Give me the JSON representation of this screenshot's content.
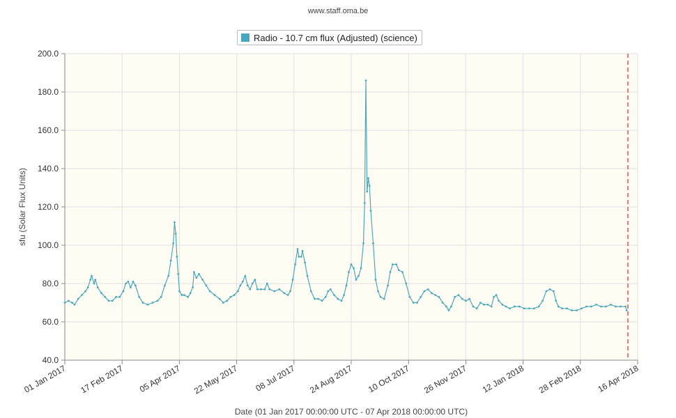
{
  "page": {
    "credit": "www.staff.oma.be"
  },
  "chart_data": {
    "type": "line",
    "title": "",
    "xlabel": "Date (01 Jan 2017 00:00:00 UTC - 07 Apr 2018 00:00:00 UTC)",
    "ylabel": "sfu (Solar Flux Units)",
    "ylim": [
      40,
      200
    ],
    "xlim": [
      "2017-01-01",
      "2018-04-16"
    ],
    "grid": true,
    "legend_position": "top-center",
    "background_color": "#fefcf3",
    "series_color": "#4aa8bd",
    "marker_line_color": "#d9534f",
    "marker_line_date": "2018-04-08",
    "y_ticks": [
      "40.0",
      "60.0",
      "80.0",
      "100.0",
      "120.0",
      "140.0",
      "160.0",
      "180.0",
      "200.0"
    ],
    "x_ticks": [
      {
        "date": "2017-01-01",
        "label": "01 Jan 2017"
      },
      {
        "date": "2017-02-17",
        "label": "17 Feb 2017"
      },
      {
        "date": "2017-04-05",
        "label": "05 Apr 2017"
      },
      {
        "date": "2017-05-22",
        "label": "22 May 2017"
      },
      {
        "date": "2017-07-08",
        "label": "08 Jul 2017"
      },
      {
        "date": "2017-08-24",
        "label": "24 Aug 2017"
      },
      {
        "date": "2017-10-10",
        "label": "10 Oct 2017"
      },
      {
        "date": "2017-11-26",
        "label": "26 Nov 2017"
      },
      {
        "date": "2018-01-12",
        "label": "12 Jan 2018"
      },
      {
        "date": "2018-02-28",
        "label": "28 Feb 2018"
      },
      {
        "date": "2018-04-16",
        "label": "16 Apr 2018"
      }
    ],
    "series": [
      {
        "name": "Radio - 10.7 cm flux (Adjusted) (science)",
        "points": [
          [
            "2017-01-01",
            70
          ],
          [
            "2017-01-04",
            71
          ],
          [
            "2017-01-07",
            70
          ],
          [
            "2017-01-09",
            69
          ],
          [
            "2017-01-12",
            72
          ],
          [
            "2017-01-15",
            74
          ],
          [
            "2017-01-18",
            76
          ],
          [
            "2017-01-20",
            78
          ],
          [
            "2017-01-22",
            82
          ],
          [
            "2017-01-23",
            84
          ],
          [
            "2017-01-25",
            80
          ],
          [
            "2017-01-26",
            82
          ],
          [
            "2017-01-28",
            78
          ],
          [
            "2017-01-31",
            75
          ],
          [
            "2017-02-03",
            73
          ],
          [
            "2017-02-06",
            71
          ],
          [
            "2017-02-09",
            71
          ],
          [
            "2017-02-12",
            73
          ],
          [
            "2017-02-15",
            73
          ],
          [
            "2017-02-18",
            76
          ],
          [
            "2017-02-20",
            80
          ],
          [
            "2017-02-22",
            81
          ],
          [
            "2017-02-24",
            78
          ],
          [
            "2017-02-26",
            81
          ],
          [
            "2017-02-28",
            79
          ],
          [
            "2017-03-03",
            73
          ],
          [
            "2017-03-06",
            70
          ],
          [
            "2017-03-10",
            69
          ],
          [
            "2017-03-14",
            70
          ],
          [
            "2017-03-18",
            71
          ],
          [
            "2017-03-21",
            73
          ],
          [
            "2017-03-24",
            79
          ],
          [
            "2017-03-27",
            84
          ],
          [
            "2017-03-29",
            92
          ],
          [
            "2017-03-31",
            101
          ],
          [
            "2017-04-01",
            112
          ],
          [
            "2017-04-02",
            106
          ],
          [
            "2017-04-03",
            94
          ],
          [
            "2017-04-04",
            85
          ],
          [
            "2017-04-05",
            76
          ],
          [
            "2017-04-07",
            74
          ],
          [
            "2017-04-09",
            74
          ],
          [
            "2017-04-12",
            73
          ],
          [
            "2017-04-14",
            75
          ],
          [
            "2017-04-16",
            78
          ],
          [
            "2017-04-17",
            86
          ],
          [
            "2017-04-19",
            83
          ],
          [
            "2017-04-21",
            85
          ],
          [
            "2017-04-24",
            82
          ],
          [
            "2017-04-27",
            79
          ],
          [
            "2017-04-30",
            76
          ],
          [
            "2017-05-04",
            74
          ],
          [
            "2017-05-08",
            72
          ],
          [
            "2017-05-11",
            70
          ],
          [
            "2017-05-14",
            71
          ],
          [
            "2017-05-17",
            73
          ],
          [
            "2017-05-20",
            74
          ],
          [
            "2017-05-23",
            76
          ],
          [
            "2017-05-25",
            79
          ],
          [
            "2017-05-27",
            81
          ],
          [
            "2017-05-29",
            84
          ],
          [
            "2017-05-31",
            79
          ],
          [
            "2017-06-02",
            77
          ],
          [
            "2017-06-04",
            80
          ],
          [
            "2017-06-06",
            82
          ],
          [
            "2017-06-08",
            77
          ],
          [
            "2017-06-11",
            77
          ],
          [
            "2017-06-14",
            77
          ],
          [
            "2017-06-16",
            80
          ],
          [
            "2017-06-18",
            77
          ],
          [
            "2017-06-22",
            76
          ],
          [
            "2017-06-26",
            77
          ],
          [
            "2017-06-30",
            75
          ],
          [
            "2017-07-03",
            74
          ],
          [
            "2017-07-05",
            76
          ],
          [
            "2017-07-07",
            82
          ],
          [
            "2017-07-09",
            90
          ],
          [
            "2017-07-11",
            98
          ],
          [
            "2017-07-12",
            94
          ],
          [
            "2017-07-14",
            94
          ],
          [
            "2017-07-15",
            97
          ],
          [
            "2017-07-17",
            91
          ],
          [
            "2017-07-19",
            84
          ],
          [
            "2017-07-22",
            76
          ],
          [
            "2017-07-25",
            72
          ],
          [
            "2017-07-28",
            72
          ],
          [
            "2017-07-31",
            71
          ],
          [
            "2017-08-03",
            73
          ],
          [
            "2017-08-05",
            76
          ],
          [
            "2017-08-07",
            77
          ],
          [
            "2017-08-10",
            74
          ],
          [
            "2017-08-13",
            72
          ],
          [
            "2017-08-16",
            71
          ],
          [
            "2017-08-18",
            74
          ],
          [
            "2017-08-20",
            79
          ],
          [
            "2017-08-22",
            86
          ],
          [
            "2017-08-24",
            90
          ],
          [
            "2017-08-26",
            88
          ],
          [
            "2017-08-28",
            82
          ],
          [
            "2017-08-30",
            84
          ],
          [
            "2017-09-01",
            88
          ],
          [
            "2017-09-03",
            101
          ],
          [
            "2017-09-04",
            122
          ],
          [
            "2017-09-05",
            186
          ],
          [
            "2017-09-06",
            128
          ],
          [
            "2017-09-07",
            135
          ],
          [
            "2017-09-08",
            131
          ],
          [
            "2017-09-09",
            118
          ],
          [
            "2017-09-11",
            101
          ],
          [
            "2017-09-13",
            82
          ],
          [
            "2017-09-15",
            76
          ],
          [
            "2017-09-17",
            73
          ],
          [
            "2017-09-20",
            72
          ],
          [
            "2017-09-23",
            79
          ],
          [
            "2017-09-25",
            86
          ],
          [
            "2017-09-27",
            90
          ],
          [
            "2017-09-30",
            90
          ],
          [
            "2017-10-02",
            87
          ],
          [
            "2017-10-05",
            86
          ],
          [
            "2017-10-08",
            80
          ],
          [
            "2017-10-11",
            73
          ],
          [
            "2017-10-14",
            70
          ],
          [
            "2017-10-17",
            70
          ],
          [
            "2017-10-20",
            73
          ],
          [
            "2017-10-23",
            76
          ],
          [
            "2017-10-26",
            77
          ],
          [
            "2017-10-29",
            75
          ],
          [
            "2017-11-01",
            74
          ],
          [
            "2017-11-04",
            73
          ],
          [
            "2017-11-07",
            70
          ],
          [
            "2017-11-10",
            68
          ],
          [
            "2017-11-12",
            66
          ],
          [
            "2017-11-14",
            68
          ],
          [
            "2017-11-17",
            73
          ],
          [
            "2017-11-20",
            74
          ],
          [
            "2017-11-23",
            72
          ],
          [
            "2017-11-26",
            71
          ],
          [
            "2017-11-29",
            72
          ],
          [
            "2017-12-02",
            68
          ],
          [
            "2017-12-05",
            67
          ],
          [
            "2017-12-08",
            70
          ],
          [
            "2017-12-11",
            69
          ],
          [
            "2017-12-14",
            69
          ],
          [
            "2017-12-17",
            68
          ],
          [
            "2017-12-19",
            73
          ],
          [
            "2017-12-21",
            74
          ],
          [
            "2017-12-23",
            71
          ],
          [
            "2017-12-26",
            69
          ],
          [
            "2017-12-29",
            68
          ],
          [
            "2018-01-01",
            67
          ],
          [
            "2018-01-05",
            68
          ],
          [
            "2018-01-09",
            68
          ],
          [
            "2018-01-13",
            67
          ],
          [
            "2018-01-17",
            67
          ],
          [
            "2018-01-21",
            67
          ],
          [
            "2018-01-25",
            68
          ],
          [
            "2018-01-28",
            71
          ],
          [
            "2018-01-31",
            76
          ],
          [
            "2018-02-03",
            77
          ],
          [
            "2018-02-06",
            76
          ],
          [
            "2018-02-08",
            71
          ],
          [
            "2018-02-10",
            68
          ],
          [
            "2018-02-13",
            67
          ],
          [
            "2018-02-17",
            67
          ],
          [
            "2018-02-21",
            66
          ],
          [
            "2018-02-25",
            66
          ],
          [
            "2018-03-01",
            67
          ],
          [
            "2018-03-05",
            68
          ],
          [
            "2018-03-09",
            68
          ],
          [
            "2018-03-13",
            69
          ],
          [
            "2018-03-17",
            68
          ],
          [
            "2018-03-21",
            68
          ],
          [
            "2018-03-25",
            69
          ],
          [
            "2018-03-29",
            68
          ],
          [
            "2018-04-02",
            68
          ],
          [
            "2018-04-06",
            68
          ],
          [
            "2018-04-07",
            66
          ]
        ]
      }
    ]
  }
}
